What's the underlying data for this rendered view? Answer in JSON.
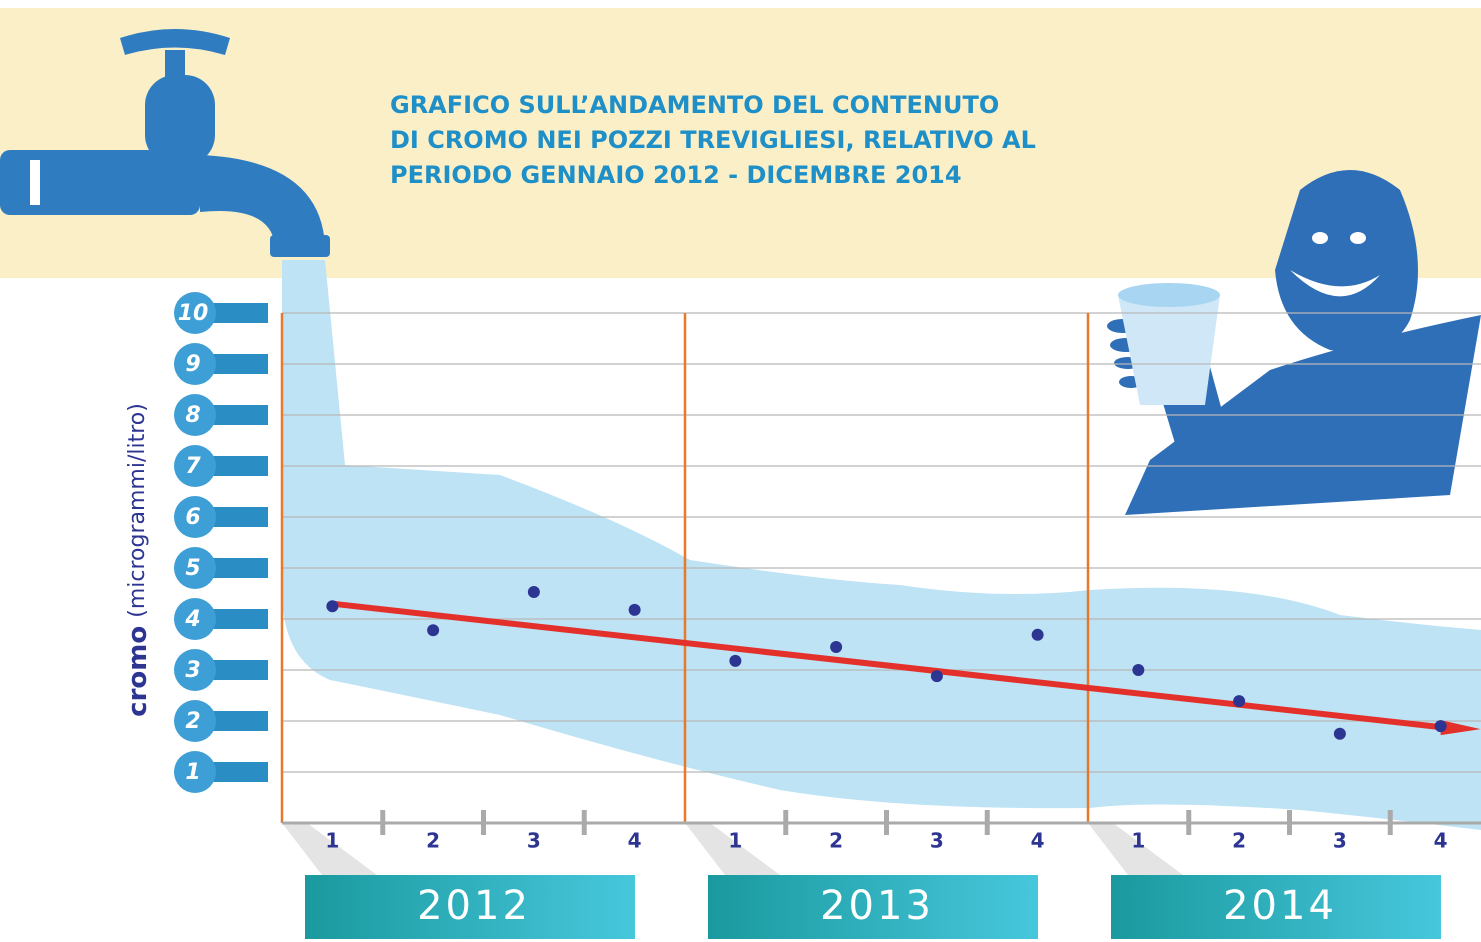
{
  "chart_data": {
    "type": "scatter",
    "title_lines": [
      "GRAFICO SULL’ANDAMENTO DEL CONTENUTO",
      "DI CROMO NEI POZZI TREVIGLIESI, RELATIVO AL",
      "PERIODO GENNAIO 2012 - DICEMBRE 2014"
    ],
    "ylabel": "cromo",
    "ylabel_unit": "(microgrammi/litro)",
    "categories": [
      "1",
      "2",
      "3",
      "4",
      "1",
      "2",
      "3",
      "4",
      "1",
      "2",
      "3",
      "4"
    ],
    "groups": [
      "2012",
      "2013",
      "2014"
    ],
    "values": [
      4.25,
      3.78,
      4.53,
      4.18,
      3.18,
      3.45,
      2.88,
      3.69,
      3.0,
      2.39,
      1.75,
      1.9
    ],
    "color": "#2d3592",
    "trend": {
      "color": "#e3302a",
      "values": [
        4.3,
        1.88
      ]
    },
    "ylim": [
      0,
      10
    ],
    "yticks": [
      1,
      2,
      3,
      4,
      5,
      6,
      7,
      8,
      9,
      10
    ],
    "grid": true
  }
}
